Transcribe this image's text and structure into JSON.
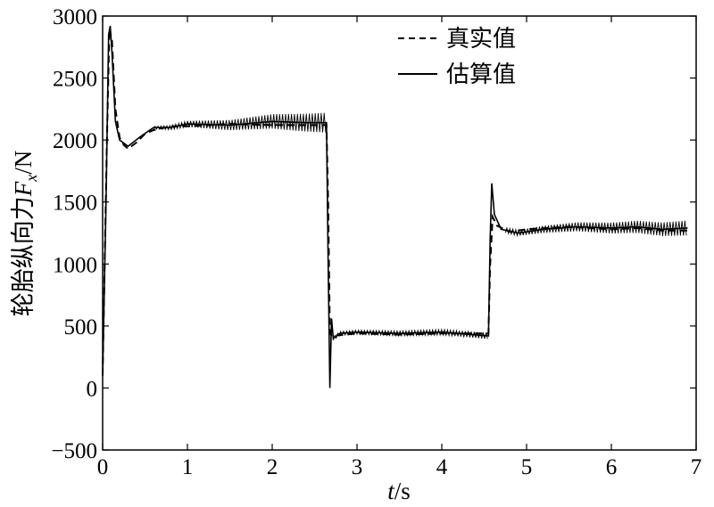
{
  "chart_data": {
    "type": "line",
    "xlabel_var": "t",
    "xlabel_unit": "/s",
    "ylabel_main": "轮胎纵向力",
    "ylabel_var": "F",
    "ylabel_sub": "x",
    "ylabel_unit": "/N",
    "xlim": [
      0,
      7
    ],
    "ylim": [
      -500,
      3000
    ],
    "xticks": [
      "0",
      "1",
      "2",
      "3",
      "4",
      "5",
      "6",
      "7"
    ],
    "yticks": [
      "3000",
      "2500",
      "2000",
      "1500",
      "1000",
      "500",
      "0",
      "−500"
    ],
    "grid": false,
    "legend_position": "top-right",
    "series": [
      {
        "name": "真实值",
        "style": "dashed",
        "points": [
          [
            0.0,
            100
          ],
          [
            0.05,
            2000
          ],
          [
            0.08,
            2900
          ],
          [
            0.11,
            2800
          ],
          [
            0.15,
            2250
          ],
          [
            0.2,
            2020
          ],
          [
            0.25,
            1960
          ],
          [
            0.3,
            1930
          ],
          [
            0.4,
            1980
          ],
          [
            0.5,
            2050
          ],
          [
            0.6,
            2080
          ],
          [
            0.8,
            2110
          ],
          [
            1.0,
            2110
          ],
          [
            1.5,
            2130
          ],
          [
            2.0,
            2120
          ],
          [
            2.5,
            2120
          ],
          [
            2.64,
            2120
          ],
          [
            2.66,
            1500
          ],
          [
            2.68,
            450
          ],
          [
            2.7,
            420
          ],
          [
            3.0,
            440
          ],
          [
            3.5,
            430
          ],
          [
            4.0,
            440
          ],
          [
            4.55,
            440
          ],
          [
            4.57,
            1000
          ],
          [
            4.6,
            1380
          ],
          [
            4.65,
            1310
          ],
          [
            4.8,
            1260
          ],
          [
            5.0,
            1280
          ],
          [
            5.5,
            1300
          ],
          [
            6.0,
            1280
          ],
          [
            6.3,
            1290
          ],
          [
            6.6,
            1270
          ],
          [
            6.9,
            1270
          ]
        ]
      },
      {
        "name": "估算值",
        "style": "solid",
        "points": [
          [
            0.0,
            100
          ],
          [
            0.04,
            1500
          ],
          [
            0.07,
            2850
          ],
          [
            0.09,
            2920
          ],
          [
            0.11,
            2700
          ],
          [
            0.15,
            2150
          ],
          [
            0.2,
            2000
          ],
          [
            0.3,
            1950
          ],
          [
            0.45,
            2030
          ],
          [
            0.6,
            2100
          ],
          [
            0.8,
            2100
          ],
          [
            1.0,
            2130
          ],
          [
            1.5,
            2120
          ],
          [
            2.0,
            2150
          ],
          [
            2.4,
            2140
          ],
          [
            2.64,
            2140
          ],
          [
            2.66,
            1000
          ],
          [
            2.68,
            0
          ],
          [
            2.7,
            560
          ],
          [
            2.72,
            400
          ],
          [
            2.8,
            440
          ],
          [
            3.0,
            450
          ],
          [
            3.5,
            440
          ],
          [
            4.0,
            450
          ],
          [
            4.55,
            420
          ],
          [
            4.57,
            1200
          ],
          [
            4.59,
            1650
          ],
          [
            4.62,
            1400
          ],
          [
            4.7,
            1280
          ],
          [
            4.9,
            1250
          ],
          [
            5.2,
            1280
          ],
          [
            5.6,
            1300
          ],
          [
            6.0,
            1290
          ],
          [
            6.3,
            1300
          ],
          [
            6.6,
            1280
          ],
          [
            6.9,
            1290
          ]
        ]
      }
    ],
    "oscillation_bands": [
      {
        "x0": 0.6,
        "x1": 2.64,
        "amp0": 10,
        "amp1": 80,
        "period": 0.035,
        "base_series": 1
      },
      {
        "x0": 2.72,
        "x1": 4.55,
        "amp0": 15,
        "amp1": 25,
        "period": 0.035,
        "base_series": 1
      },
      {
        "x0": 4.75,
        "x1": 6.9,
        "amp0": 20,
        "amp1": 60,
        "period": 0.035,
        "base_series": 1
      }
    ]
  }
}
